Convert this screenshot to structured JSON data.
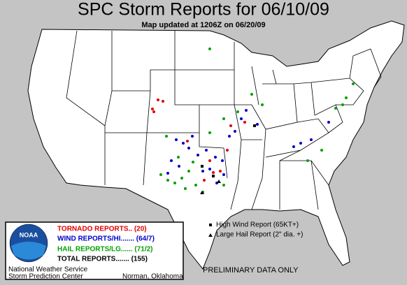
{
  "header": {
    "title": "SPC Storm Reports for 06/10/09",
    "subtitle": "Map updated at 1206Z on 06/20/09"
  },
  "legend": {
    "logo": "NOAA",
    "entries": [
      "TORNADO REPORTS.. (20)",
      "WIND REPORTS/HI....... (64/7)",
      "HAIL REPORTS/LG...... (71/2)",
      "TOTAL REPORTS....... (155)"
    ],
    "symbols": [
      "High Wind Report (65KT+)",
      "Large Hail Report (2\" dia. +)"
    ]
  },
  "footer": {
    "agency": "National Weather Service",
    "center": "Storm Prediction Center",
    "location": "Norman, Oklahoma",
    "note": "PRELIMINARY DATA ONLY"
  }
}
